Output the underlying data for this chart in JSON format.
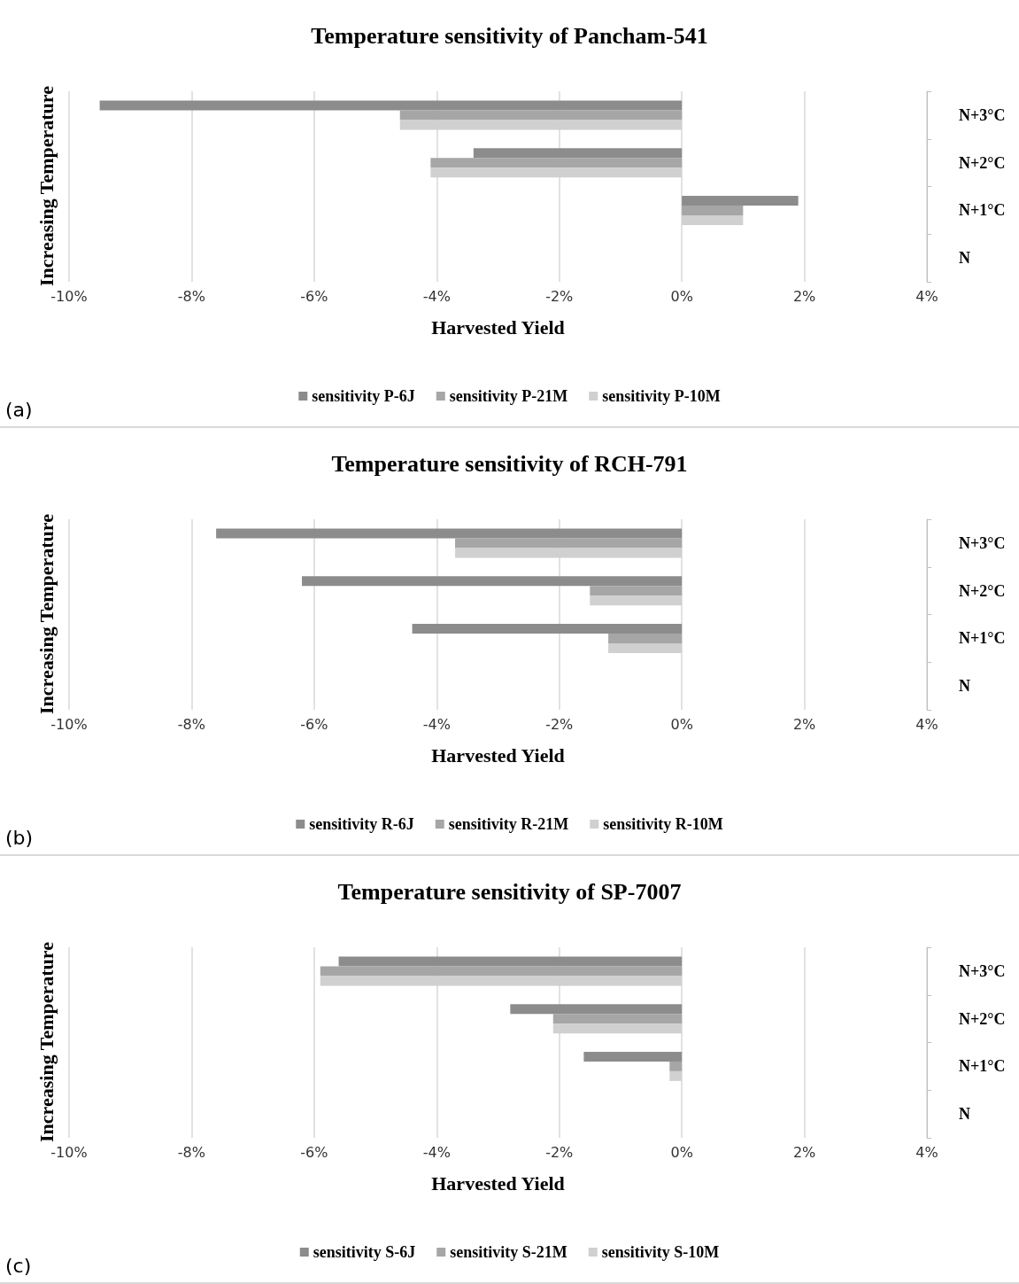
{
  "chart_data": [
    {
      "type": "bar",
      "orientation": "horizontal",
      "title": "Temperature sensitivity of Pancham-541",
      "xlabel": "Harvested Yield",
      "ylabel": "Increasing Temperature",
      "categories": [
        "N+3°C",
        "N+2°C",
        "N+1°C",
        "N"
      ],
      "series": [
        {
          "name": "sensitivity P-6J",
          "color": "#8c8c8c",
          "values": [
            -9.5,
            -3.4,
            1.9,
            0
          ]
        },
        {
          "name": "sensitivity P-21M",
          "color": "#a6a6a6",
          "values": [
            -4.6,
            -4.1,
            1.0,
            0
          ]
        },
        {
          "name": "sensitivity P-10M",
          "color": "#d0d0d0",
          "values": [
            -4.6,
            -4.1,
            1.0,
            0
          ]
        }
      ],
      "xlim": [
        -10,
        4
      ],
      "xticks": [
        {
          "value": -10,
          "label": "-10%"
        },
        {
          "value": -8,
          "label": "-8%"
        },
        {
          "value": -6,
          "label": "-6%"
        },
        {
          "value": -4,
          "label": "-4%"
        },
        {
          "value": -2,
          "label": "-2%"
        },
        {
          "value": 0,
          "label": "0%"
        },
        {
          "value": 2,
          "label": "2%"
        },
        {
          "value": 4,
          "label": "4%"
        }
      ],
      "grid": "x",
      "legend": "bottom",
      "annotations": [
        "(a)"
      ]
    },
    {
      "type": "bar",
      "orientation": "horizontal",
      "title": "Temperature sensitivity of RCH-791",
      "xlabel": "Harvested Yield",
      "ylabel": "Increasing Temperature",
      "categories": [
        "N+3°C",
        "N+2°C",
        "N+1°C",
        "N"
      ],
      "series": [
        {
          "name": "sensitivity R-6J",
          "color": "#8c8c8c",
          "values": [
            -7.6,
            -6.2,
            -4.4,
            0
          ]
        },
        {
          "name": "sensitivity R-21M",
          "color": "#a6a6a6",
          "values": [
            -3.7,
            -1.5,
            -1.2,
            0
          ]
        },
        {
          "name": "sensitivity R-10M",
          "color": "#d0d0d0",
          "values": [
            -3.7,
            -1.5,
            -1.2,
            0
          ]
        }
      ],
      "xlim": [
        -10,
        4
      ],
      "xticks": [
        {
          "value": -10,
          "label": "-10%"
        },
        {
          "value": -8,
          "label": "-8%"
        },
        {
          "value": -6,
          "label": "-6%"
        },
        {
          "value": -4,
          "label": "-4%"
        },
        {
          "value": -2,
          "label": "-2%"
        },
        {
          "value": 0,
          "label": "0%"
        },
        {
          "value": 2,
          "label": "2%"
        },
        {
          "value": 4,
          "label": "4%"
        }
      ],
      "grid": "x",
      "legend": "bottom",
      "annotations": [
        "(b)"
      ]
    },
    {
      "type": "bar",
      "orientation": "horizontal",
      "title": "Temperature sensitivity of SP-7007",
      "xlabel": "Harvested Yield",
      "ylabel": "Increasing Temperature",
      "categories": [
        "N+3°C",
        "N+2°C",
        "N+1°C",
        "N"
      ],
      "series": [
        {
          "name": "sensitivity S-6J",
          "color": "#8c8c8c",
          "values": [
            -5.6,
            -2.8,
            -1.6,
            0
          ]
        },
        {
          "name": "sensitivity S-21M",
          "color": "#a6a6a6",
          "values": [
            -5.9,
            -2.1,
            -0.2,
            0
          ]
        },
        {
          "name": "sensitivity S-10M",
          "color": "#d0d0d0",
          "values": [
            -5.9,
            -2.1,
            -0.2,
            0
          ]
        }
      ],
      "xlim": [
        -10,
        4
      ],
      "xticks": [
        {
          "value": -10,
          "label": "-10%"
        },
        {
          "value": -8,
          "label": "-8%"
        },
        {
          "value": -6,
          "label": "-6%"
        },
        {
          "value": -4,
          "label": "-4%"
        },
        {
          "value": -2,
          "label": "-2%"
        },
        {
          "value": 0,
          "label": "0%"
        },
        {
          "value": 2,
          "label": "2%"
        },
        {
          "value": 4,
          "label": "4%"
        }
      ],
      "grid": "x",
      "legend": "bottom",
      "annotations": [
        "(c)"
      ]
    }
  ]
}
